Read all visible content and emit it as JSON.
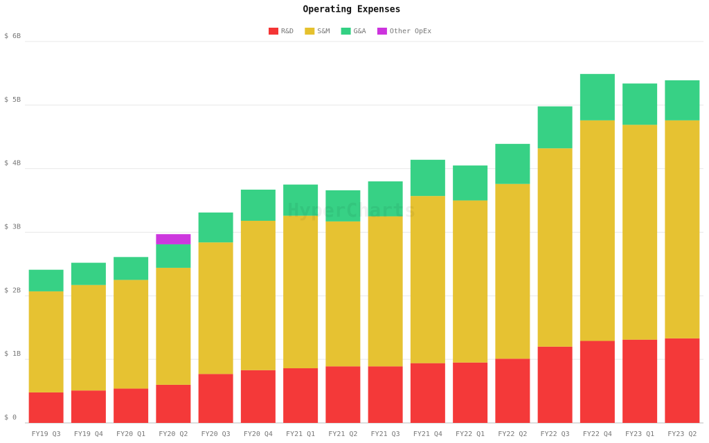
{
  "chart_data": {
    "type": "stacked-bar",
    "title": "Operating Expenses",
    "watermark": "HyperCharts",
    "categories": [
      "FY19 Q3",
      "FY19 Q4",
      "FY20 Q1",
      "FY20 Q2",
      "FY20 Q3",
      "FY20 Q4",
      "FY21 Q1",
      "FY21 Q2",
      "FY21 Q3",
      "FY21 Q4",
      "FY22 Q1",
      "FY22 Q2",
      "FY22 Q3",
      "FY22 Q4",
      "FY23 Q1",
      "FY23 Q2"
    ],
    "series": [
      {
        "name": "R&D",
        "color": "#f43535",
        "values": [
          0.48,
          0.51,
          0.54,
          0.6,
          0.77,
          0.83,
          0.86,
          0.89,
          0.89,
          0.94,
          0.95,
          1.01,
          1.2,
          1.29,
          1.31,
          1.33
        ]
      },
      {
        "name": "S&M",
        "color": "#e5c12e",
        "values": [
          1.59,
          1.66,
          1.71,
          1.84,
          2.07,
          2.35,
          2.4,
          2.28,
          2.36,
          2.63,
          2.55,
          2.75,
          3.12,
          3.47,
          3.38,
          3.43
        ]
      },
      {
        "name": "G&A",
        "color": "#33d083",
        "values": [
          0.34,
          0.35,
          0.36,
          0.37,
          0.47,
          0.49,
          0.49,
          0.49,
          0.55,
          0.57,
          0.55,
          0.63,
          0.66,
          0.73,
          0.65,
          0.63
        ]
      },
      {
        "name": "Other OpEx",
        "color": "#cc33dd",
        "values": [
          null,
          null,
          null,
          0.16,
          null,
          null,
          null,
          null,
          null,
          null,
          null,
          null,
          null,
          null,
          null,
          null
        ]
      }
    ],
    "ylim": [
      0,
      6
    ],
    "yticks": [
      {
        "value": 0,
        "label": "$ 0"
      },
      {
        "value": 1,
        "label": "$ 1B"
      },
      {
        "value": 2,
        "label": "$ 2B"
      },
      {
        "value": 3,
        "label": "$ 3B"
      },
      {
        "value": 4,
        "label": "$ 4B"
      },
      {
        "value": 5,
        "label": "$ 5B"
      },
      {
        "value": 6,
        "label": "$ 6B"
      }
    ],
    "grid": true,
    "legend": "top"
  }
}
